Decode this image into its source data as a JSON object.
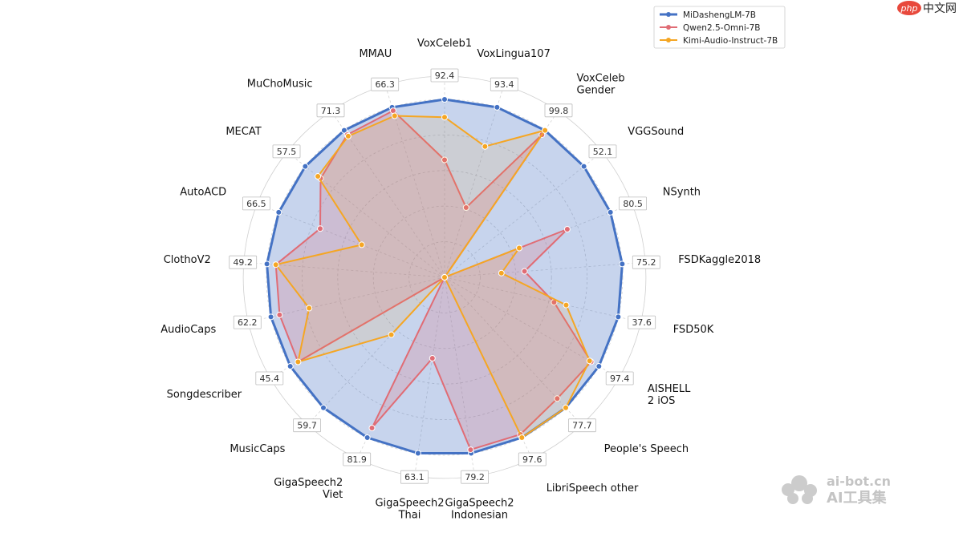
{
  "chart_data": {
    "type": "radar",
    "categories": [
      "VoxCeleb1",
      "VoxLingua107",
      "VoxCeleb\nGender",
      "VGGSound",
      "NSynth",
      "FSDKaggle2018",
      "FSD50K",
      "AISHELL\n2 iOS",
      "People's Speech",
      "LibriSpeech other",
      "GigaSpeech2\nIndonesian",
      "GigaSpeech2\nThai",
      "GigaSpeech2\nViet",
      "MusicCaps",
      "Songdescriber",
      "AudioCaps",
      "ClothoV2",
      "AutoACD",
      "MECAT",
      "MuChoMusic",
      "MMAU"
    ],
    "value_labels": [
      "92.4",
      "93.4",
      "99.8",
      "52.1",
      "80.5",
      "75.2",
      "37.6",
      "97.4",
      "77.7",
      "97.6",
      "79.2",
      "63.1",
      "81.9",
      "59.7",
      "45.4",
      "62.2",
      "49.2",
      "66.5",
      "57.5",
      "71.3",
      "66.3"
    ],
    "rlim": [
      0,
      1
    ],
    "grid": true,
    "legend": "top-right",
    "series": [
      {
        "name": "MiDashengLM-7B",
        "color": "#4472c4",
        "values": [
          1.0,
          1.0,
          1.0,
          1.0,
          1.0,
          1.0,
          1.0,
          1.0,
          1.0,
          1.0,
          1.0,
          1.0,
          1.0,
          1.0,
          1.0,
          1.0,
          1.0,
          1.0,
          1.0,
          1.0,
          1.0
        ]
      },
      {
        "name": "Qwen2.5-Omni-7B",
        "color": "#e06c75",
        "values": [
          0.66,
          0.41,
          0.97,
          0.0,
          0.74,
          0.45,
          0.63,
          0.95,
          0.93,
          0.98,
          0.98,
          0.46,
          0.94,
          0.0,
          0.95,
          0.95,
          0.95,
          0.75,
          0.89,
          0.97,
          0.98
        ]
      },
      {
        "name": "Kimi-Audio-Instruct-7B",
        "color": "#f5a623",
        "values": [
          0.9,
          0.77,
          1.0,
          0.0,
          0.45,
          0.32,
          0.7,
          0.94,
          1.0,
          1.0,
          0.0,
          0.0,
          0.0,
          0.44,
          0.95,
          0.78,
          0.95,
          0.5,
          0.91,
          0.96,
          0.95
        ]
      }
    ]
  },
  "watermarks": {
    "top_right": "中文网",
    "top_right_brand": "php",
    "bottom_right_line1": "ai-bot.cn",
    "bottom_right_line2": "AI工具集"
  }
}
